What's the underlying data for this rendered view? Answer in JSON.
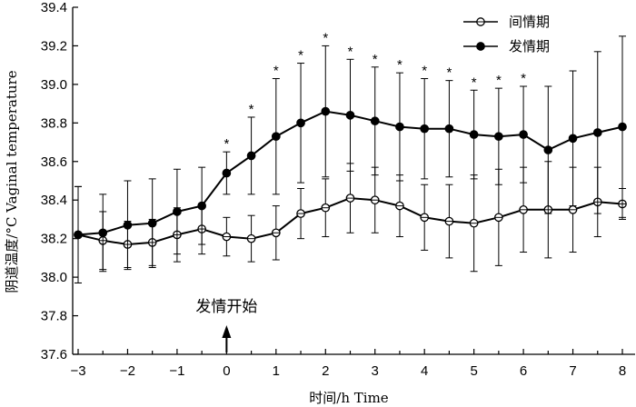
{
  "chart_data": {
    "type": "line",
    "xlabel": "时间/h  Time",
    "ylabel": "阴道温度/°C  Vaginal temperature",
    "xlim": [
      -3,
      8
    ],
    "ylim": [
      37.6,
      39.4
    ],
    "xticks": [
      "−3",
      "−2",
      "−1",
      "0",
      "1",
      "2",
      "3",
      "4",
      "5",
      "6",
      "7",
      "8"
    ],
    "yticks": [
      "37.6",
      "37.8",
      "38.0",
      "38.2",
      "38.4",
      "38.6",
      "38.8",
      "39.0",
      "39.2",
      "39.4"
    ],
    "legend_position": "top-right",
    "x": [
      -3,
      -2.5,
      -2,
      -1.5,
      -1,
      -0.5,
      0,
      0.5,
      1,
      1.5,
      2,
      2.5,
      3,
      3.5,
      4,
      4.5,
      5,
      5.5,
      6,
      6.5,
      7,
      7.5,
      8
    ],
    "series": [
      {
        "name": "间情期",
        "marker": "open-circle",
        "values": [
          38.22,
          38.19,
          38.17,
          38.18,
          38.22,
          38.25,
          38.21,
          38.2,
          38.23,
          38.33,
          38.36,
          38.41,
          38.4,
          38.37,
          38.31,
          38.29,
          38.28,
          38.31,
          38.35,
          38.35,
          38.35,
          38.39,
          38.38
        ],
        "error": [
          0.25,
          0.15,
          0.12,
          0.12,
          0.14,
          0.13,
          0.1,
          0.12,
          0.14,
          0.13,
          0.15,
          0.18,
          0.17,
          0.16,
          0.17,
          0.19,
          0.25,
          0.25,
          0.22,
          0.25,
          0.22,
          0.18,
          0.08
        ]
      },
      {
        "name": "发情期",
        "marker": "filled-circle",
        "values": [
          38.22,
          38.23,
          38.27,
          38.28,
          38.34,
          38.37,
          38.54,
          38.63,
          38.73,
          38.8,
          38.86,
          38.84,
          38.81,
          38.78,
          38.77,
          38.77,
          38.74,
          38.73,
          38.74,
          38.66,
          38.72,
          38.75,
          38.78
        ],
        "error": [
          0.25,
          0.2,
          0.23,
          0.23,
          0.22,
          0.2,
          0.11,
          0.2,
          0.3,
          0.31,
          0.34,
          0.29,
          0.28,
          0.28,
          0.26,
          0.25,
          0.23,
          0.25,
          0.25,
          0.33,
          0.35,
          0.42,
          0.47
        ]
      }
    ],
    "significance_marker": "*",
    "significant_x": [
      0,
      0.5,
      1,
      1.5,
      2,
      2.5,
      3,
      3.5,
      4,
      4.5,
      5,
      5.5,
      6
    ],
    "annotation": {
      "text": "发情开始",
      "x": 0
    }
  }
}
